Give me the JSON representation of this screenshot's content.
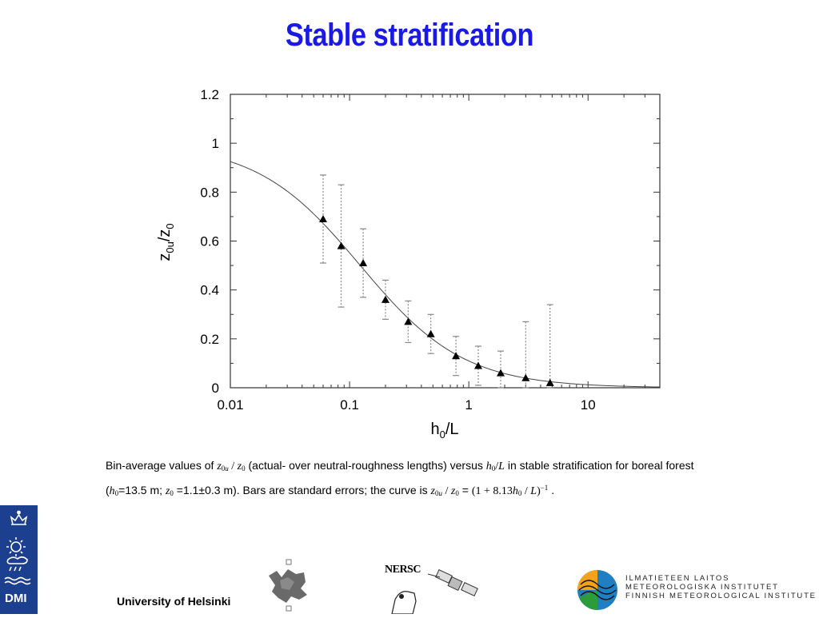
{
  "slide": {
    "title": "Stable stratification",
    "caption": {
      "p1": "Bin-average values of ",
      "p2": " (actual- over neutral-roughness lengths) versus ",
      "p3": " in stable stratification for boreal forest (",
      "p4": "=13.5 m; ",
      "p5": " =1.1±0.3 m). Bars are standard errors; the curve is ",
      "p6": " = ",
      "p7": " ."
    },
    "footer": {
      "university": "University of Helsinki",
      "nersc": "NERSC",
      "dmi": "DMI",
      "fmi_lines": [
        "ILMATIETEEN LAITOS",
        "METEOROLOGISKA INSTITUTET",
        "FINNISH METEOROLOGICAL INSTITUTE"
      ]
    },
    "colors": {
      "title": "#1a1ae6",
      "dmi_blue": "#1d3f8f"
    }
  },
  "chart_data": {
    "type": "scatter",
    "xscale": "log",
    "xlim": [
      0.01,
      40
    ],
    "ylim": [
      0,
      1.2
    ],
    "xticks": [
      0.01,
      0.1,
      1,
      10
    ],
    "xtick_labels": [
      "0.01",
      "0.1",
      "1",
      "10"
    ],
    "yticks": [
      0,
      0.2,
      0.4,
      0.6,
      0.8,
      1,
      1.2
    ],
    "ytick_labels": [
      "0",
      "0.2",
      "0.4",
      "0.6",
      "0.8",
      "1",
      "1.2"
    ],
    "xlabel": "h0/L",
    "ylabel": "z0u/z0",
    "grid": false,
    "points": [
      {
        "x": 0.06,
        "y": 0.69,
        "err": 0.18
      },
      {
        "x": 0.085,
        "y": 0.58,
        "err": 0.25
      },
      {
        "x": 0.13,
        "y": 0.51,
        "err": 0.14
      },
      {
        "x": 0.2,
        "y": 0.36,
        "err": 0.08
      },
      {
        "x": 0.31,
        "y": 0.27,
        "err": 0.085
      },
      {
        "x": 0.48,
        "y": 0.22,
        "err": 0.08
      },
      {
        "x": 0.78,
        "y": 0.13,
        "err": 0.08
      },
      {
        "x": 1.2,
        "y": 0.09,
        "err": 0.08
      },
      {
        "x": 1.85,
        "y": 0.06,
        "err": 0.09
      },
      {
        "x": 3.0,
        "y": 0.04,
        "err": 0.23
      },
      {
        "x": 4.8,
        "y": 0.02,
        "err": 0.32
      }
    ],
    "curve": {
      "a": 8.13,
      "power": -1
    }
  }
}
